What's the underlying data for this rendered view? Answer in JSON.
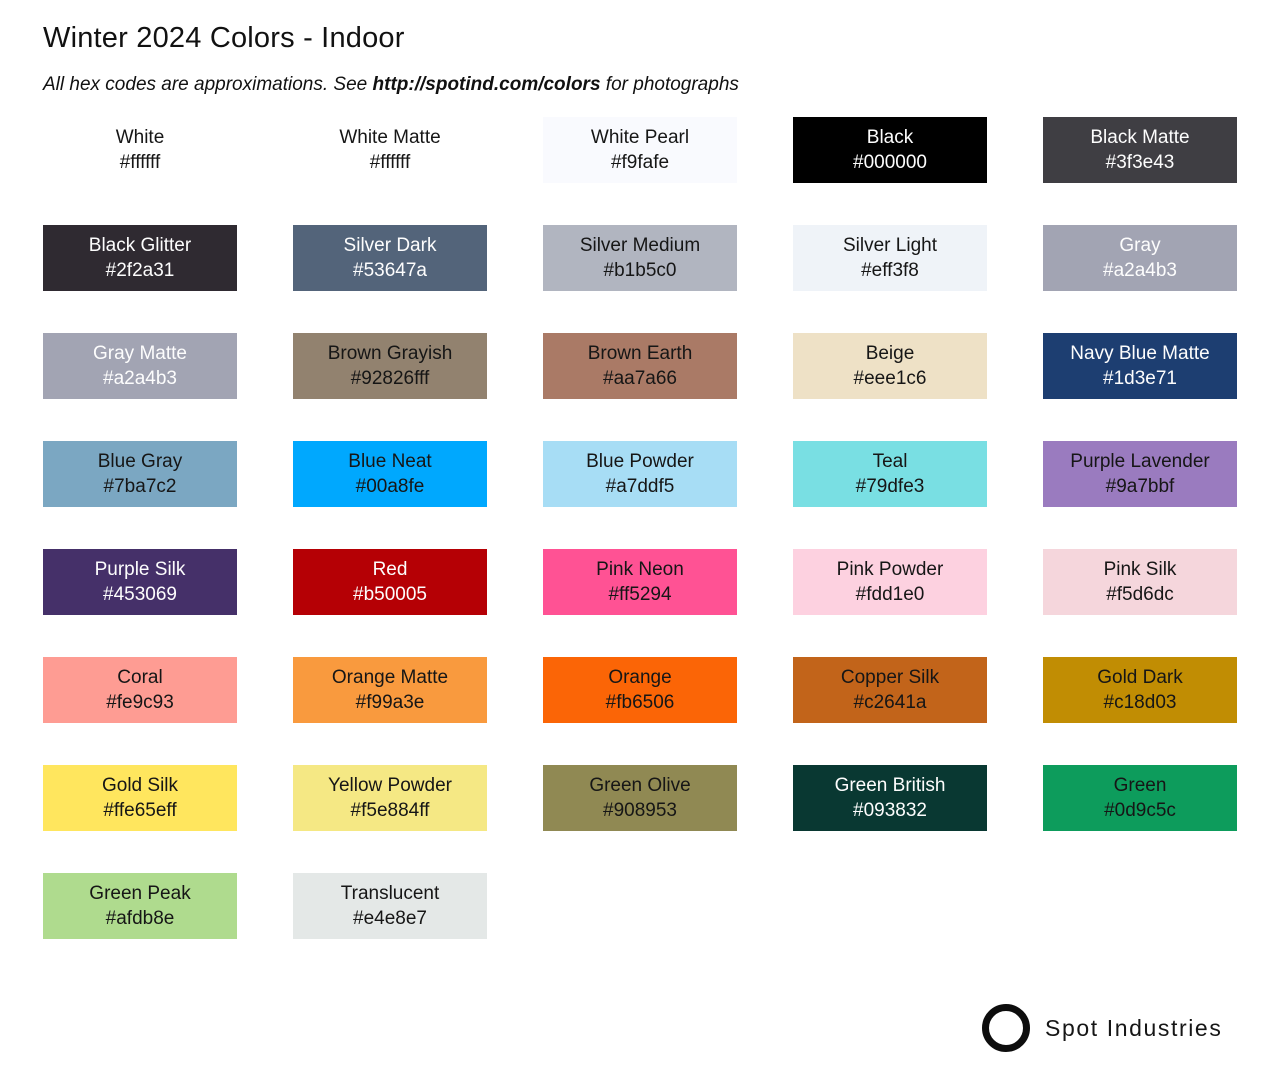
{
  "header": {
    "title": "Winter 2024 Colors - Indoor",
    "subtitle_prefix": "All hex codes are approximations. See ",
    "subtitle_link": "http://spotind.com/colors",
    "subtitle_suffix": " for photographs"
  },
  "palette_text_colors": {
    "dark": "#161616",
    "light": "#fdfdfd"
  },
  "swatches": [
    {
      "name": "White",
      "hex": "#ffffff",
      "text": "dark"
    },
    {
      "name": "White Matte",
      "hex": "#ffffff",
      "text": "dark"
    },
    {
      "name": "White Pearl",
      "hex": "#f9fafe",
      "text": "dark"
    },
    {
      "name": "Black",
      "hex": "#000000",
      "text": "light"
    },
    {
      "name": "Black Matte",
      "hex": "#3f3e43",
      "text": "light"
    },
    {
      "name": "Black Glitter",
      "hex": "#2f2a31",
      "text": "light",
      "texture": "glitter"
    },
    {
      "name": "Silver Dark",
      "hex": "#53647a",
      "text": "light"
    },
    {
      "name": "Silver Medium",
      "hex": "#b1b5c0",
      "text": "dark"
    },
    {
      "name": "Silver Light",
      "hex": "#eff3f8",
      "text": "dark"
    },
    {
      "name": "Gray",
      "hex": "#a2a4b3",
      "text": "light"
    },
    {
      "name": "Gray Matte",
      "hex": "#a2a4b3",
      "text": "light"
    },
    {
      "name": "Brown Grayish",
      "hex": "#92826fff",
      "text": "dark"
    },
    {
      "name": "Brown Earth",
      "hex": "#aa7a66",
      "text": "dark"
    },
    {
      "name": "Beige",
      "hex": "#eee1c6",
      "text": "dark"
    },
    {
      "name": "Navy Blue Matte",
      "hex": "#1d3e71",
      "text": "light"
    },
    {
      "name": "Blue Gray",
      "hex": "#7ba7c2",
      "text": "dark"
    },
    {
      "name": "Blue Neat",
      "hex": "#00a8fe",
      "text": "dark"
    },
    {
      "name": "Blue Powder",
      "hex": "#a7ddf5",
      "text": "dark"
    },
    {
      "name": "Teal",
      "hex": "#79dfe3",
      "text": "dark"
    },
    {
      "name": "Purple Lavender",
      "hex": "#9a7bbf",
      "text": "dark"
    },
    {
      "name": "Purple Silk",
      "hex": "#453069",
      "text": "light"
    },
    {
      "name": "Red",
      "hex": "#b50005",
      "text": "light"
    },
    {
      "name": "Pink Neon",
      "hex": "#ff5294",
      "text": "dark"
    },
    {
      "name": "Pink Powder",
      "hex": "#fdd1e0",
      "text": "dark"
    },
    {
      "name": "Pink Silk",
      "hex": "#f5d6dc",
      "text": "dark"
    },
    {
      "name": "Coral",
      "hex": "#fe9c93",
      "text": "dark"
    },
    {
      "name": "Orange Matte",
      "hex": "#f99a3e",
      "text": "dark"
    },
    {
      "name": "Orange",
      "hex": "#fb6506",
      "text": "dark"
    },
    {
      "name": "Copper Silk",
      "hex": "#c2641a",
      "text": "dark"
    },
    {
      "name": "Gold Dark",
      "hex": "#c18d03",
      "text": "dark"
    },
    {
      "name": "Gold Silk",
      "hex": "#ffe65eff",
      "text": "dark"
    },
    {
      "name": "Yellow Powder",
      "hex": "#f5e884ff",
      "text": "dark"
    },
    {
      "name": "Green Olive",
      "hex": "#908953",
      "text": "dark"
    },
    {
      "name": "Green British",
      "hex": "#093832",
      "text": "light"
    },
    {
      "name": "Green",
      "hex": "#0d9c5c",
      "text": "dark"
    },
    {
      "name": "Green Peak",
      "hex": "#afdb8e",
      "text": "dark"
    },
    {
      "name": "Translucent",
      "hex": "#e4e8e7",
      "text": "dark"
    }
  ],
  "footer": {
    "brand": "Spot Industries",
    "logo_icon": "circle-ring-icon"
  }
}
